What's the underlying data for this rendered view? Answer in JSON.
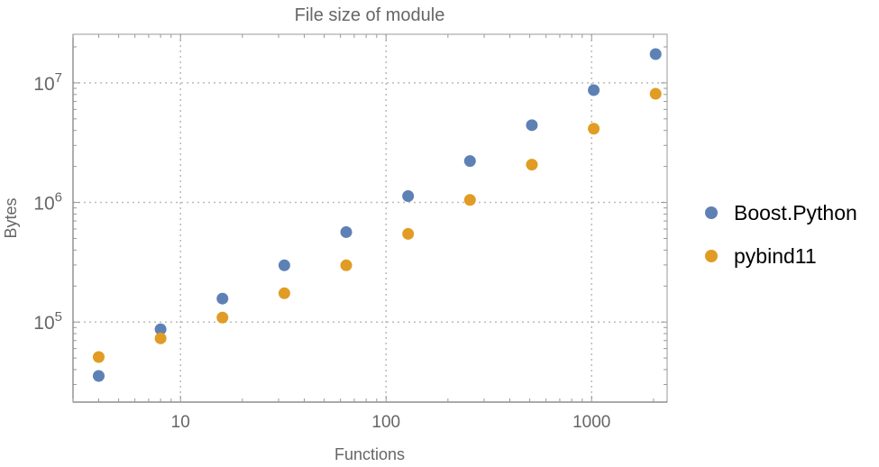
{
  "chart_data": {
    "type": "scatter",
    "title": "File size of module",
    "xlabel": "Functions",
    "ylabel": "Bytes",
    "xscale": "log",
    "yscale": "log",
    "xlim": [
      3,
      2330
    ],
    "ylim": [
      21400,
      25500000
    ],
    "grid": true,
    "legend_position": "right",
    "x_ticks": [
      {
        "value": 10,
        "label": "10"
      },
      {
        "value": 100,
        "label": "100"
      },
      {
        "value": 1000,
        "label": "1000"
      }
    ],
    "y_ticks": [
      {
        "value": 100000,
        "base": "10",
        "exp": "5"
      },
      {
        "value": 1000000,
        "base": "10",
        "exp": "6"
      },
      {
        "value": 10000000,
        "base": "10",
        "exp": "7"
      }
    ],
    "x": [
      4,
      8,
      16,
      32,
      64,
      128,
      256,
      512,
      1024,
      2048
    ],
    "series": [
      {
        "name": "Boost.Python",
        "color": "#5E81B5",
        "values": [
          35400,
          87000,
          157000,
          298000,
          565000,
          1130000,
          2220000,
          4430000,
          8700000,
          17400000
        ]
      },
      {
        "name": "pybind11",
        "color": "#E19C24",
        "values": [
          51000,
          73000,
          109000,
          174000,
          298000,
          546000,
          1050000,
          2070000,
          4140000,
          8100000
        ]
      }
    ]
  }
}
